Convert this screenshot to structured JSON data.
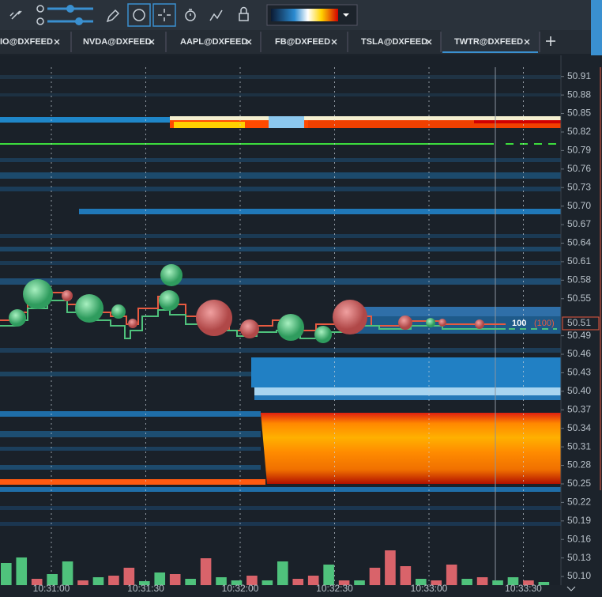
{
  "tabs": [
    "IO@DXFEED",
    "NVDA@DXFEED",
    "AAPL@DXFEED",
    "FB@DXFEED",
    "TSLA@DXFEED",
    "TWTR@DXFEED"
  ],
  "price_axis": {
    "ylim": [
      50.086,
      50.925
    ],
    "ticks": [
      50.91,
      50.88,
      50.85,
      50.82,
      50.79,
      50.76,
      50.73,
      {
        "value": 50.7,
        "label": "50.70"
      },
      50.67,
      50.64,
      50.61,
      50.58,
      50.55,
      50.49,
      50.46,
      50.43,
      {
        "value": 50.4,
        "label": "50.40"
      },
      50.37,
      50.34,
      50.31,
      50.28,
      50.25,
      50.22,
      50.19,
      50.16,
      50.13,
      {
        "value": 50.1,
        "label": "50.10"
      }
    ]
  },
  "time_axis": [
    "10:31:00",
    "10:31:30",
    "10:32:00",
    "10:32:30",
    "10:33:00",
    "10:33:30"
  ],
  "current_price": 50.51,
  "last_trade": {
    "size": 100,
    "total": "(100)"
  },
  "volume": {
    "ylim": [
      0,
      60
    ],
    "values": [
      28,
      35,
      8,
      14,
      30,
      6,
      10,
      12,
      22,
      5,
      16,
      14,
      8,
      34,
      10,
      6,
      12,
      6,
      30,
      8,
      12,
      26,
      6,
      6,
      22,
      44,
      24,
      8,
      6,
      26,
      8,
      10,
      6,
      10,
      6,
      4
    ],
    "colors": [
      "#4fc27c",
      "#4fc27c",
      "#d9636a",
      "#4fc27c",
      "#4fc27c",
      "#d9636a",
      "#4fc27c",
      "#d9636a",
      "#d9636a",
      "#4fc27c",
      "#4fc27c",
      "#d9636a",
      "#4fc27c",
      "#d9636a",
      "#4fc27c",
      "#4fc27c",
      "#d9636a",
      "#4fc27c",
      "#4fc27c",
      "#d9636a",
      "#d9636a",
      "#4fc27c",
      "#d9636a",
      "#4fc27c",
      "#d9636a",
      "#d9636a",
      "#d9636a",
      "#4fc27c",
      "#d9636a",
      "#d9636a",
      "#4fc27c",
      "#d9636a",
      "#4fc27c",
      "#4fc27c",
      "#d9636a",
      "#4fc27c"
    ]
  }
}
